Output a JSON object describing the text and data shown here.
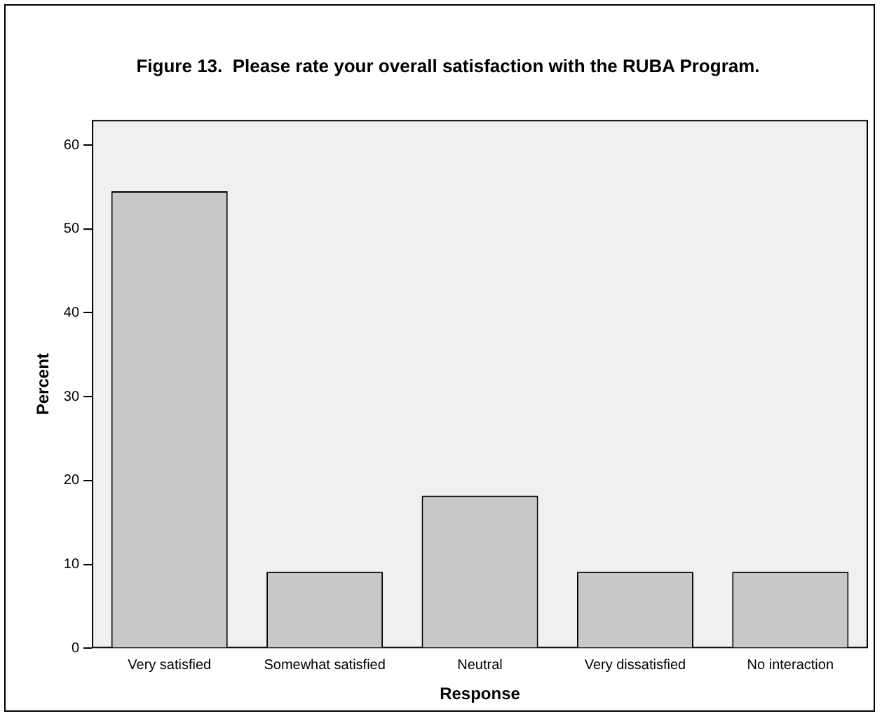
{
  "chart_data": {
    "type": "bar",
    "title": "Figure 13.  Please rate your overall satisfaction with the RUBA Program.",
    "xlabel": "Response",
    "ylabel": "Percent",
    "categories": [
      "Very satisfied",
      "Somewhat satisfied",
      "Neutral",
      "Very dissatisfied",
      "No interaction"
    ],
    "values": [
      54.5,
      9.1,
      18.2,
      9.1,
      9.1
    ],
    "color": "#c8c8c8",
    "ylim": [
      0,
      63
    ],
    "yticks": [
      0,
      10,
      20,
      30,
      40,
      50,
      60
    ],
    "grid": false,
    "legend": false
  }
}
